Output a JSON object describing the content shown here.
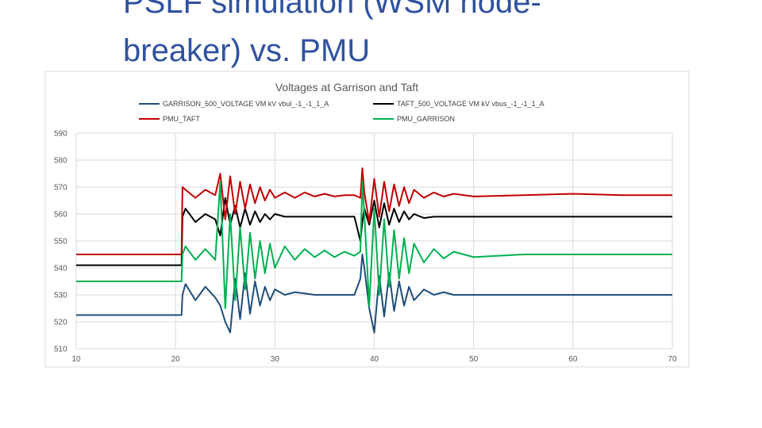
{
  "slide_title": [
    "PSLF simulation (WSM node-",
    "breaker) vs. PMU"
  ],
  "chart_data": {
    "type": "line",
    "title": "Voltages at Garrison and Taft",
    "x": [
      10,
      20.6,
      20.7,
      21,
      22,
      23,
      24,
      24.5,
      25,
      25.5,
      26,
      26.5,
      27,
      27.5,
      28,
      28.5,
      29,
      29.5,
      30,
      31,
      32,
      33,
      34,
      35,
      36,
      37,
      38,
      38.6,
      38.8,
      39,
      39.5,
      40,
      40.5,
      41,
      41.5,
      42,
      42.5,
      43,
      43.5,
      44,
      45,
      46,
      47,
      48,
      50,
      55,
      60,
      65,
      70
    ],
    "series": [
      {
        "name": "GARRISON_500_VOLTAGE VM kV vbul_-1_-1_1_A",
        "color": "#1f4e79",
        "values": [
          522.5,
          522.5,
          530,
          534,
          528,
          533,
          529,
          526,
          520,
          516,
          536,
          521,
          538,
          523,
          535,
          526,
          533,
          528,
          532,
          530,
          531,
          530.5,
          530,
          530,
          530,
          530,
          530,
          536,
          545,
          540,
          525,
          516,
          537,
          522,
          538,
          524,
          535,
          526,
          533,
          528,
          532,
          530,
          531,
          530,
          530,
          530,
          530,
          530,
          530
        ]
      },
      {
        "name": "TAFT_500_VOLTAGE VM kV vbus_-1_-1_1_A",
        "color": "#000000",
        "values": [
          541,
          541,
          559,
          562,
          557,
          560,
          558,
          552,
          566,
          556,
          563,
          555,
          562,
          556,
          561,
          557,
          560,
          558,
          560,
          559,
          559,
          559,
          559,
          559,
          559,
          559,
          559,
          550,
          557,
          562,
          556,
          565,
          555,
          564,
          556,
          562,
          557,
          561,
          558,
          560,
          558.5,
          559,
          559,
          559,
          559,
          559,
          559,
          559,
          559
        ]
      },
      {
        "name": "PMU_TAFT",
        "color": "#c00000",
        "values": [
          545,
          545,
          570,
          569,
          566,
          569,
          567,
          575,
          558,
          574,
          560,
          572,
          562,
          571,
          564,
          570,
          565,
          569,
          566,
          568,
          566,
          568,
          566.5,
          567.5,
          566.5,
          567,
          567,
          566,
          577,
          568,
          557,
          573,
          559,
          572,
          561,
          571,
          563,
          570,
          564,
          569,
          566,
          568,
          566.5,
          567.5,
          566.5,
          567,
          567.5,
          567,
          567
        ]
      },
      {
        "name": "PMU_GARRISON",
        "color": "#00b050",
        "values": [
          535,
          535,
          545,
          548,
          543,
          547,
          543,
          572,
          525,
          560,
          528,
          555,
          532,
          553,
          536,
          550,
          538,
          549,
          540,
          548,
          543,
          547,
          544,
          546.5,
          544,
          546,
          544.5,
          546,
          572,
          560,
          526,
          562,
          530,
          558,
          533,
          554,
          536,
          551,
          538,
          549,
          542,
          547,
          543.5,
          546,
          544,
          545,
          545,
          545,
          545
        ]
      }
    ],
    "xlim": [
      10,
      70
    ],
    "xticks": [
      10,
      20,
      30,
      40,
      50,
      60,
      70
    ],
    "ylim": [
      510,
      590
    ],
    "yticks": [
      510,
      520,
      530,
      540,
      550,
      560,
      570,
      580,
      590
    ],
    "grid": true
  }
}
